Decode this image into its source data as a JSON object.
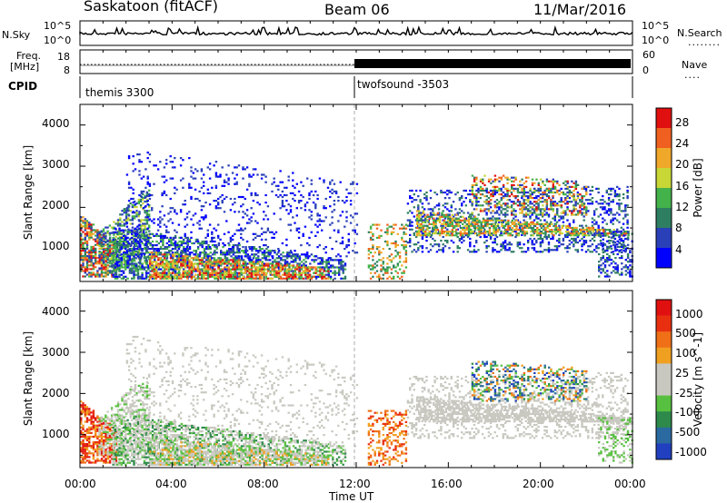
{
  "header": {
    "station": "Saskatoon (fitACF)",
    "beam": "Beam 06",
    "date": "11/Mar/2016"
  },
  "side_labels": {
    "nsky": "N.Sky",
    "nsearch": "N.Search",
    "freq_line1": "Freq.",
    "freq_line2": "[MHz]",
    "nave": "Nave",
    "cpid": "CPID",
    "dots_nsearch": "........",
    "dots_nave": "...."
  },
  "noise_panel": {
    "left_ticks": [
      "10^5",
      "10^0"
    ],
    "right_ticks": [
      "10^5",
      "10^0"
    ]
  },
  "freq_panel": {
    "left_ticks": [
      "18",
      "8"
    ],
    "right_ticks": [
      "60",
      "0"
    ]
  },
  "cpid_labels": [
    "themis 3300",
    "twofsound -3503"
  ],
  "x_axis": {
    "title": "Time UT",
    "ticks": [
      "00:00",
      "04:00",
      "08:00",
      "12:00",
      "16:00",
      "20:00",
      "00:00"
    ]
  },
  "chart_data": [
    {
      "type": "heatmap",
      "ylabel": "Slant Range [km]",
      "y_ticks": [
        "1000",
        "2000",
        "3000",
        "4000"
      ],
      "ylim": [
        200,
        4500
      ],
      "xlim_hours": [
        0,
        24
      ],
      "colorbar": {
        "label": "Power [dB]",
        "ticks": [
          "4",
          "8",
          "12",
          "16",
          "20",
          "24",
          "28"
        ],
        "range": [
          0,
          30
        ],
        "colors": [
          "#0000ff",
          "#2a40b8",
          "#2e7e62",
          "#44b24a",
          "#c8d636",
          "#f0a82a",
          "#f06020",
          "#e01010"
        ]
      }
    },
    {
      "type": "heatmap",
      "ylabel": "Slant Range [km]",
      "y_ticks": [
        "1000",
        "2000",
        "3000",
        "4000"
      ],
      "ylim": [
        200,
        4500
      ],
      "xlim_hours": [
        0,
        24
      ],
      "colorbar": {
        "label": "Velocity [m s^-1]",
        "ticks": [
          "1000",
          "500",
          "100",
          "25",
          "-25",
          "-100",
          "-500",
          "-1000"
        ],
        "colors": [
          "#2040c0",
          "#2a6aa0",
          "#2e8a4a",
          "#58c040",
          "#c8c8c0",
          "#c8c8c0",
          "#f0a020",
          "#f07018",
          "#e83010",
          "#e01010"
        ]
      }
    }
  ]
}
